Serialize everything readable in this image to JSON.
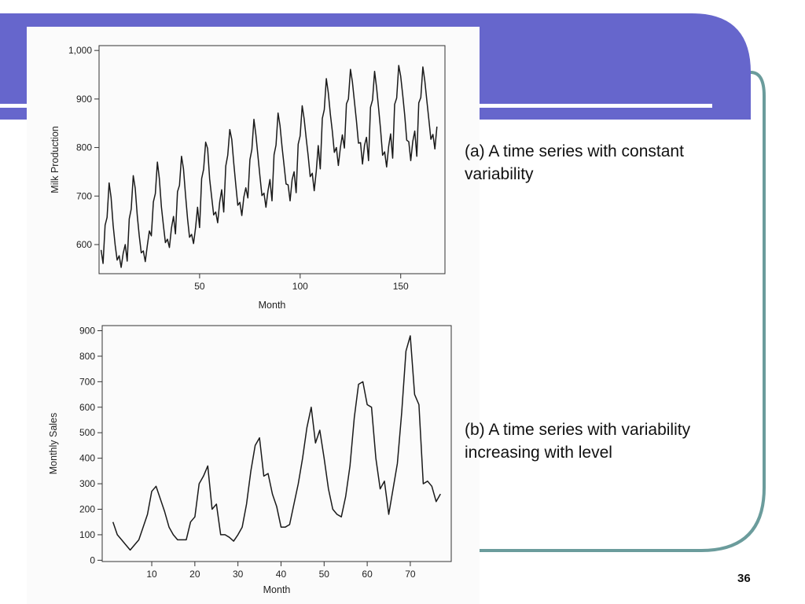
{
  "theme": {
    "banner_color": "#6666cc",
    "frame_color": "#6b9c9c",
    "stripe_color": "#ffffff",
    "line_color": "#1a1a1a"
  },
  "captions": {
    "a": "(a) A time series with constant variability",
    "b": "(b) A time series with variability increasing with level"
  },
  "page_number": "36",
  "chart_data": [
    {
      "type": "line",
      "xlabel": "Month",
      "ylabel": "Milk Production",
      "xlim": [
        0,
        172
      ],
      "ylim": [
        540,
        1010
      ],
      "xticks": [
        50,
        100,
        150
      ],
      "yticks": [
        600,
        700,
        800,
        900,
        1000
      ],
      "ytick_labels": [
        "600",
        "700",
        "800",
        "900",
        "1,000"
      ],
      "series": [
        {
          "x": [
            1,
            2,
            3,
            4,
            5,
            6,
            7,
            8,
            9,
            10,
            11,
            12,
            13,
            14,
            15,
            16,
            17,
            18,
            19,
            20,
            21,
            22,
            23,
            24,
            25,
            26,
            27,
            28,
            29,
            30,
            31,
            32,
            33,
            34,
            35,
            36,
            37,
            38,
            39,
            40,
            41,
            42,
            43,
            44,
            45,
            46,
            47,
            48,
            49,
            50,
            51,
            52,
            53,
            54,
            55,
            56,
            57,
            58,
            59,
            60,
            61,
            62,
            63,
            64,
            65,
            66,
            67,
            68,
            69,
            70,
            71,
            72,
            73,
            74,
            75,
            76,
            77,
            78,
            79,
            80,
            81,
            82,
            83,
            84,
            85,
            86,
            87,
            88,
            89,
            90,
            91,
            92,
            93,
            94,
            95,
            96,
            97,
            98,
            99,
            100,
            101,
            102,
            103,
            104,
            105,
            106,
            107,
            108,
            109,
            110,
            111,
            112,
            113,
            114,
            115,
            116,
            117,
            118,
            119,
            120,
            121,
            122,
            123,
            124,
            125,
            126,
            127,
            128,
            129,
            130,
            131,
            132,
            133,
            134,
            135,
            136,
            137,
            138,
            139,
            140,
            141,
            142,
            143,
            144,
            145,
            146,
            147,
            148,
            149,
            150,
            151,
            152,
            153,
            154,
            155,
            156,
            157,
            158,
            159,
            160,
            161,
            162,
            163,
            164,
            165,
            166,
            167,
            168
          ],
          "y": [
            589,
            561,
            640,
            656,
            727,
            697,
            640,
            599,
            568,
            577,
            553,
            582,
            600,
            566,
            653,
            673,
            742,
            716,
            660,
            617,
            583,
            587,
            565,
            598,
            628,
            618,
            688,
            705,
            770,
            736,
            678,
            639,
            604,
            611,
            594,
            634,
            658,
            622,
            709,
            722,
            782,
            756,
            702,
            653,
            615,
            621,
            602,
            635,
            677,
            635,
            736,
            755,
            811,
            798,
            735,
            697,
            661,
            667,
            645,
            688,
            713,
            667,
            762,
            784,
            837,
            817,
            767,
            722,
            681,
            687,
            660,
            698,
            717,
            696,
            775,
            796,
            858,
            826,
            783,
            740,
            701,
            706,
            677,
            711,
            734,
            690,
            785,
            805,
            871,
            845,
            801,
            764,
            725,
            723,
            690,
            734,
            750,
            707,
            807,
            824,
            886,
            859,
            819,
            783,
            740,
            747,
            711,
            751,
            804,
            756,
            860,
            878,
            942,
            913,
            869,
            834,
            790,
            800,
            763,
            800,
            826,
            799,
            890,
            900,
            961,
            935,
            894,
            855,
            809,
            810,
            766,
            805,
            821,
            773,
            883,
            898,
            957,
            924,
            881,
            837,
            784,
            791,
            760,
            802,
            828,
            778,
            889,
            902,
            969,
            947,
            908,
            867,
            815,
            812,
            773,
            813,
            834,
            782,
            892,
            903,
            966,
            937,
            896,
            858,
            817,
            827,
            797,
            843
          ]
        }
      ]
    },
    {
      "type": "line",
      "xlabel": "Month",
      "ylabel": "Monthly Sales",
      "xlim": [
        -1.5,
        79.5
      ],
      "ylim": [
        -5,
        920
      ],
      "xticks": [
        10,
        20,
        30,
        40,
        50,
        60,
        70
      ],
      "yticks": [
        0,
        100,
        200,
        300,
        400,
        500,
        600,
        700,
        800,
        900
      ],
      "ytick_labels": [
        "0",
        "100",
        "200",
        "300",
        "400",
        "500",
        "600",
        "700",
        "800",
        "900"
      ],
      "series": [
        {
          "x": [
            1,
            2,
            3,
            4,
            5,
            6,
            7,
            8,
            9,
            10,
            11,
            12,
            13,
            14,
            15,
            16,
            17,
            18,
            19,
            20,
            21,
            22,
            23,
            24,
            25,
            26,
            27,
            28,
            29,
            30,
            31,
            32,
            33,
            34,
            35,
            36,
            37,
            38,
            39,
            40,
            41,
            42,
            43,
            44,
            45,
            46,
            47,
            48,
            49,
            50,
            51,
            52,
            53,
            54,
            55,
            56,
            57,
            58,
            59,
            60,
            61,
            62,
            63,
            64,
            65,
            66,
            67,
            68,
            69,
            70,
            71,
            72,
            73,
            74,
            75,
            76,
            77
          ],
          "y": [
            150,
            100,
            80,
            60,
            40,
            60,
            80,
            130,
            180,
            270,
            290,
            240,
            190,
            130,
            100,
            80,
            80,
            80,
            150,
            170,
            300,
            330,
            370,
            200,
            220,
            100,
            100,
            90,
            75,
            100,
            130,
            220,
            350,
            450,
            480,
            330,
            340,
            260,
            210,
            130,
            130,
            140,
            220,
            300,
            400,
            520,
            600,
            460,
            510,
            400,
            280,
            200,
            180,
            170,
            250,
            370,
            560,
            690,
            700,
            610,
            600,
            400,
            280,
            310,
            180,
            280,
            380,
            580,
            820,
            880,
            650,
            610,
            300,
            310,
            290,
            230,
            260
          ]
        }
      ]
    }
  ]
}
